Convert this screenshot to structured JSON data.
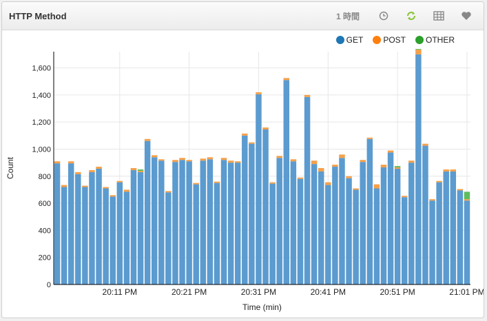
{
  "panel": {
    "title": "HTTP Method",
    "time_range": "1 時間",
    "icons": [
      "clock-icon",
      "refresh-icon",
      "table-icon",
      "heart-icon"
    ]
  },
  "chart_data": {
    "type": "bar",
    "stacked": true,
    "xlabel": "Time (min)",
    "ylabel": "Count",
    "ylim": [
      0,
      1720
    ],
    "yticks": [
      0,
      200,
      400,
      600,
      800,
      1000,
      1200,
      1400,
      1600
    ],
    "ytick_labels": [
      "0",
      "200",
      "400",
      "600",
      "800",
      "1,000",
      "1,200",
      "1,400",
      "1,600"
    ],
    "xticks": [
      "20:11 PM",
      "20:21 PM",
      "20:31 PM",
      "20:41 PM",
      "20:51 PM",
      "21:01 PM"
    ],
    "xtick_bar_index": [
      9,
      19,
      29,
      39,
      49,
      59
    ],
    "legend_position": "top-right",
    "series": [
      {
        "name": "GET",
        "color": "#1f77b4",
        "values": [
          895,
          720,
          895,
          815,
          720,
          830,
          855,
          710,
          650,
          755,
          685,
          845,
          830,
          1060,
          940,
          915,
          680,
          905,
          920,
          910,
          740,
          915,
          925,
          750,
          920,
          900,
          900,
          1100,
          1040,
          1405,
          1145,
          745,
          935,
          1510,
          910,
          780,
          1385,
          890,
          835,
          735,
          870,
          935,
          785,
          700,
          905,
          1075,
          710,
          865,
          975,
          855,
          645,
          900,
          1700,
          1025,
          620,
          755,
          835,
          835,
          695,
          620
        ]
      },
      {
        "name": "POST",
        "color": "#ff7f0e",
        "values": [
          15,
          15,
          15,
          15,
          10,
          15,
          15,
          10,
          10,
          10,
          15,
          15,
          10,
          15,
          15,
          10,
          10,
          15,
          15,
          10,
          10,
          15,
          15,
          10,
          15,
          15,
          10,
          15,
          10,
          15,
          15,
          10,
          15,
          15,
          15,
          10,
          15,
          25,
          25,
          20,
          15,
          25,
          15,
          10,
          15,
          10,
          30,
          20,
          15,
          10,
          10,
          15,
          35,
          15,
          10,
          10,
          15,
          15,
          10,
          10
        ]
      },
      {
        "name": "OTHER",
        "color": "#2ca02c",
        "values": [
          0,
          0,
          0,
          0,
          0,
          0,
          0,
          0,
          0,
          0,
          0,
          0,
          10,
          0,
          0,
          0,
          0,
          0,
          0,
          0,
          0,
          0,
          0,
          0,
          0,
          0,
          0,
          0,
          0,
          0,
          0,
          0,
          0,
          0,
          0,
          0,
          0,
          0,
          0,
          0,
          0,
          0,
          0,
          0,
          0,
          0,
          0,
          0,
          0,
          10,
          0,
          0,
          5,
          0,
          0,
          0,
          0,
          0,
          0,
          55
        ]
      }
    ]
  }
}
